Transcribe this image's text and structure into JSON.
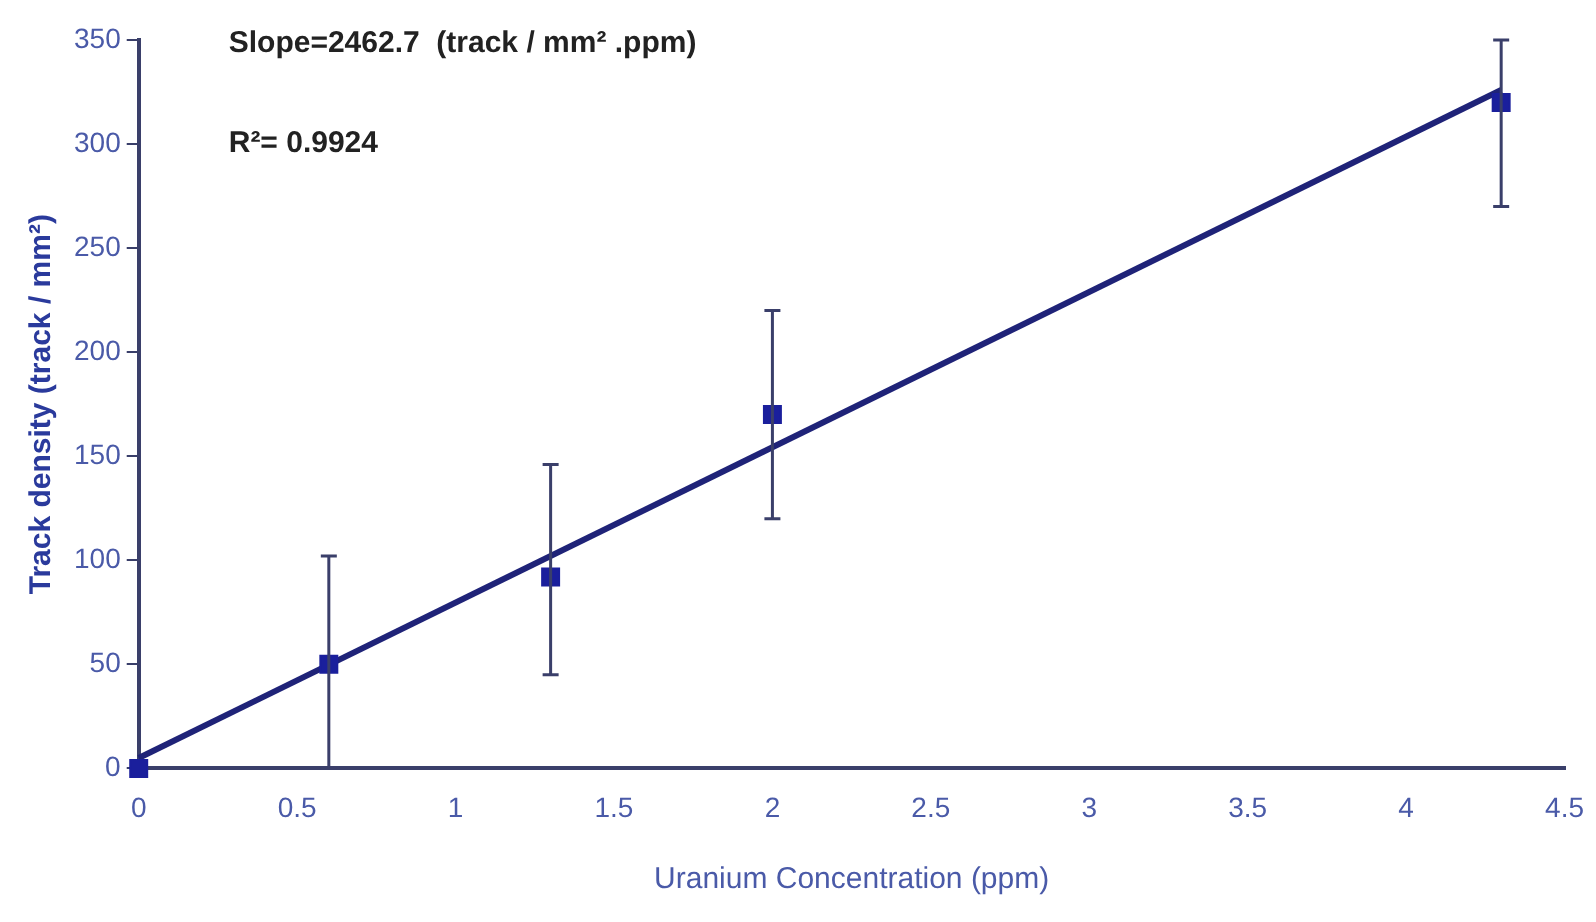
{
  "chart_data": {
    "type": "scatter",
    "xlabel": "Uranium Concentration (ppm)",
    "ylabel": "Track density (track / mm²)",
    "annotations": [
      "Slope=2462.7  (track / mm² .ppm)",
      "R²= 0.9924"
    ],
    "series": [
      {
        "color": "#1a1f9c",
        "marker": "square",
        "x": [
          0,
          0.6,
          1.3,
          2,
          4.3
        ],
        "values": [
          0,
          50,
          92,
          170,
          320
        ],
        "errors": [
          null,
          [
            0,
            102
          ],
          [
            45,
            146
          ],
          [
            120,
            220
          ],
          [
            270,
            350
          ]
        ]
      },
      {
        "type": "line",
        "color": "#1f2378",
        "marker": "none",
        "x": [
          0,
          4.3
        ],
        "values": [
          5,
          326
        ]
      }
    ],
    "xlim": [
      0,
      4.5
    ],
    "xticks": [
      0,
      0.5,
      1,
      1.5,
      2,
      2.5,
      3,
      3.5,
      4,
      4.5
    ],
    "ylim": [
      0,
      350
    ],
    "yticks": [
      0,
      50,
      100,
      150,
      200,
      250,
      300,
      350
    ],
    "grid": false,
    "legend": false
  }
}
